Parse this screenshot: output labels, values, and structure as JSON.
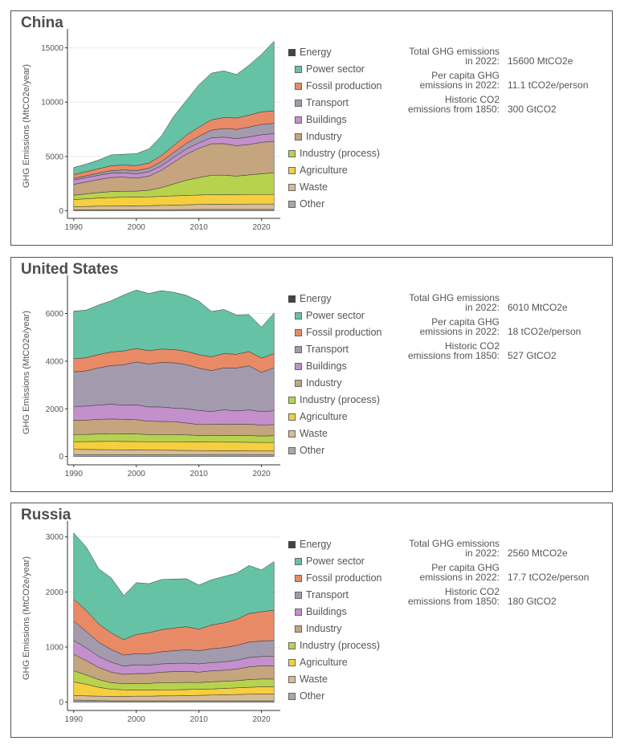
{
  "colors": {
    "Energy": "#444444",
    "Power sector": "#66c2a5",
    "Fossil production": "#e98a66",
    "Transport": "#a39bad",
    "Buildings": "#c390cc",
    "Industry": "#c4a57e",
    "Industry (process)": "#b7d34e",
    "Agriculture": "#f6cf3f",
    "Waste": "#d8bc94",
    "Other": "#a8a8a8"
  },
  "legend": [
    {
      "label": "Energy",
      "sub": false
    },
    {
      "label": "Power sector",
      "sub": true
    },
    {
      "label": "Fossil production",
      "sub": true
    },
    {
      "label": "Transport",
      "sub": true
    },
    {
      "label": "Buildings",
      "sub": true
    },
    {
      "label": "Industry",
      "sub": true
    },
    {
      "label": "Industry (process)",
      "sub": false
    },
    {
      "label": "Agriculture",
      "sub": false
    },
    {
      "label": "Waste",
      "sub": false
    },
    {
      "label": "Other",
      "sub": false
    }
  ],
  "panels": [
    {
      "title": "China",
      "stats": [
        {
          "label": "Total GHG emissions\nin 2022:",
          "value": "15600 MtCO2e"
        },
        {
          "label": "Per capita GHG\nemissions in 2022:",
          "value": "11.1 tCO2e/person"
        },
        {
          "label": "Historic CO2\nemissions from 1850:",
          "value": "300 GtCO2"
        }
      ]
    },
    {
      "title": "United States",
      "stats": [
        {
          "label": "Total GHG emissions\nin 2022:",
          "value": "6010 MtCO2e"
        },
        {
          "label": "Per capita GHG\nemissions in 2022:",
          "value": "18 tCO2e/person"
        },
        {
          "label": "Historic CO2\nemissions from 1850:",
          "value": "527 GtCO2"
        }
      ]
    },
    {
      "title": "Russia",
      "stats": [
        {
          "label": "Total GHG emissions\nin 2022:",
          "value": "2560 MtCO2e"
        },
        {
          "label": "Per capita GHG\nemissions in 2022:",
          "value": "17.7 tCO2e/person"
        },
        {
          "label": "Historic CO2\nemissions from 1850:",
          "value": "180 GtCO2"
        }
      ]
    }
  ],
  "chart_data": [
    {
      "type": "area",
      "title": "China",
      "xlabel": "",
      "ylabel": "GHG Emissions (MtCO2e/year)",
      "x": [
        1990,
        1992,
        1994,
        1996,
        1998,
        2000,
        2002,
        2004,
        2006,
        2008,
        2010,
        2012,
        2014,
        2016,
        2018,
        2020,
        2022
      ],
      "xticks": [
        1990,
        2000,
        2010,
        2020
      ],
      "yticks": [
        0,
        5000,
        10000,
        15000
      ],
      "xlim": [
        1989,
        2023
      ],
      "ylim": [
        -700,
        16300
      ],
      "stacked": true,
      "series": [
        {
          "name": "Other",
          "values": [
            80,
            80,
            85,
            85,
            85,
            85,
            90,
            95,
            100,
            110,
            120,
            120,
            120,
            120,
            120,
            120,
            120
          ]
        },
        {
          "name": "Waste",
          "values": [
            300,
            320,
            340,
            350,
            360,
            370,
            380,
            400,
            420,
            440,
            460,
            470,
            480,
            490,
            500,
            500,
            500
          ]
        },
        {
          "name": "Agriculture",
          "values": [
            650,
            700,
            750,
            780,
            800,
            800,
            810,
            830,
            850,
            860,
            870,
            880,
            880,
            880,
            880,
            880,
            880
          ]
        },
        {
          "name": "Industry (process)",
          "values": [
            400,
            450,
            500,
            550,
            550,
            550,
            600,
            800,
            1100,
            1400,
            1600,
            1800,
            1800,
            1700,
            1800,
            1900,
            2000
          ]
        },
        {
          "name": "Industry",
          "values": [
            1000,
            1100,
            1200,
            1300,
            1300,
            1200,
            1300,
            1600,
            2000,
            2400,
            2700,
            2900,
            2900,
            2800,
            2800,
            2900,
            2900
          ]
        },
        {
          "name": "Buildings",
          "values": [
            400,
            400,
            400,
            400,
            400,
            400,
            400,
            420,
            450,
            480,
            500,
            550,
            600,
            650,
            700,
            700,
            700
          ]
        },
        {
          "name": "Transport",
          "values": [
            150,
            170,
            200,
            230,
            260,
            300,
            330,
            380,
            450,
            520,
            600,
            700,
            800,
            850,
            900,
            950,
            950
          ]
        },
        {
          "name": "Fossil production",
          "values": [
            350,
            380,
            400,
            450,
            450,
            450,
            480,
            550,
            650,
            750,
            850,
            950,
            1000,
            1050,
            1100,
            1150,
            1150
          ]
        },
        {
          "name": "Power sector",
          "values": [
            650,
            700,
            800,
            1000,
            1000,
            1100,
            1300,
            1800,
            2700,
            3200,
            3900,
            4300,
            4300,
            4000,
            4600,
            5300,
            6400
          ]
        }
      ]
    },
    {
      "type": "area",
      "title": "United States",
      "xlabel": "",
      "ylabel": "GHG Emissions (MtCO2e/year)",
      "x": [
        1990,
        1992,
        1994,
        1996,
        1998,
        2000,
        2002,
        2004,
        2006,
        2008,
        2010,
        2012,
        2014,
        2016,
        2018,
        2020,
        2022
      ],
      "xticks": [
        1990,
        2000,
        2010,
        2020
      ],
      "yticks": [
        0,
        2000,
        4000,
        6000
      ],
      "xlim": [
        1989,
        2023
      ],
      "ylim": [
        -350,
        7400
      ],
      "stacked": true,
      "series": [
        {
          "name": "Other",
          "values": [
            80,
            80,
            80,
            80,
            80,
            80,
            80,
            80,
            80,
            80,
            80,
            80,
            80,
            80,
            80,
            80,
            80
          ]
        },
        {
          "name": "Waste",
          "values": [
            220,
            215,
            210,
            205,
            200,
            195,
            190,
            185,
            180,
            175,
            170,
            165,
            160,
            160,
            155,
            150,
            150
          ]
        },
        {
          "name": "Agriculture",
          "values": [
            320,
            330,
            340,
            350,
            350,
            350,
            350,
            355,
            360,
            360,
            360,
            360,
            360,
            360,
            360,
            360,
            360
          ]
        },
        {
          "name": "Industry (process)",
          "values": [
            300,
            300,
            310,
            320,
            320,
            320,
            300,
            300,
            300,
            290,
            270,
            270,
            280,
            280,
            280,
            270,
            280
          ]
        },
        {
          "name": "Industry",
          "values": [
            600,
            600,
            620,
            620,
            610,
            600,
            560,
            550,
            540,
            500,
            460,
            470,
            480,
            470,
            480,
            460,
            470
          ]
        },
        {
          "name": "Buildings",
          "values": [
            580,
            590,
            600,
            620,
            590,
            620,
            600,
            610,
            570,
            600,
            590,
            540,
            600,
            560,
            600,
            560,
            580
          ]
        },
        {
          "name": "Transport",
          "values": [
            1450,
            1480,
            1560,
            1620,
            1700,
            1800,
            1800,
            1870,
            1900,
            1850,
            1780,
            1720,
            1760,
            1800,
            1850,
            1650,
            1800
          ]
        },
        {
          "name": "Fossil production",
          "values": [
            550,
            550,
            560,
            570,
            580,
            570,
            560,
            560,
            560,
            560,
            560,
            580,
            600,
            580,
            600,
            600,
            600
          ]
        },
        {
          "name": "Power sector",
          "values": [
            2000,
            2000,
            2080,
            2150,
            2350,
            2450,
            2400,
            2450,
            2400,
            2350,
            2250,
            1900,
            1850,
            1650,
            1550,
            1300,
            1700
          ]
        }
      ]
    },
    {
      "type": "area",
      "title": "Russia",
      "xlabel": "",
      "ylabel": "GHG Emissions (MtCO2e/year)",
      "x": [
        1990,
        1992,
        1994,
        1996,
        1998,
        2000,
        2002,
        2004,
        2006,
        2008,
        2010,
        2012,
        2014,
        2016,
        2018,
        2020,
        2022
      ],
      "xticks": [
        1990,
        2000,
        2010,
        2020
      ],
      "yticks": [
        0,
        1000,
        2000,
        3000
      ],
      "xlim": [
        1989,
        2023
      ],
      "ylim": [
        -150,
        3200
      ],
      "stacked": true,
      "series": [
        {
          "name": "Other",
          "values": [
            40,
            35,
            30,
            25,
            25,
            25,
            25,
            25,
            25,
            25,
            25,
            25,
            25,
            25,
            25,
            25,
            25
          ]
        },
        {
          "name": "Waste",
          "values": [
            80,
            80,
            80,
            80,
            80,
            85,
            85,
            90,
            90,
            95,
            100,
            105,
            110,
            115,
            120,
            125,
            125
          ]
        },
        {
          "name": "Agriculture",
          "values": [
            250,
            210,
            160,
            130,
            120,
            110,
            110,
            110,
            110,
            110,
            110,
            110,
            115,
            120,
            125,
            130,
            130
          ]
        },
        {
          "name": "Industry (process)",
          "values": [
            200,
            170,
            140,
            120,
            110,
            120,
            120,
            130,
            130,
            130,
            120,
            130,
            130,
            130,
            140,
            140,
            140
          ]
        },
        {
          "name": "Industry",
          "values": [
            300,
            260,
            220,
            190,
            170,
            180,
            180,
            190,
            200,
            200,
            190,
            200,
            200,
            210,
            230,
            240,
            240
          ]
        },
        {
          "name": "Buildings",
          "values": [
            250,
            230,
            200,
            180,
            150,
            160,
            150,
            150,
            150,
            150,
            150,
            150,
            150,
            160,
            170,
            170,
            170
          ]
        },
        {
          "name": "Transport",
          "values": [
            350,
            300,
            260,
            230,
            200,
            200,
            210,
            220,
            230,
            240,
            240,
            250,
            260,
            270,
            280,
            280,
            290
          ]
        },
        {
          "name": "Fossil production",
          "values": [
            400,
            380,
            330,
            300,
            280,
            350,
            380,
            400,
            410,
            420,
            390,
            430,
            450,
            470,
            520,
            530,
            550
          ]
        },
        {
          "name": "Power sector",
          "values": [
            1200,
            1150,
            1000,
            1000,
            800,
            940,
            890,
            910,
            890,
            870,
            800,
            820,
            840,
            840,
            870,
            760,
            880
          ]
        }
      ]
    }
  ]
}
